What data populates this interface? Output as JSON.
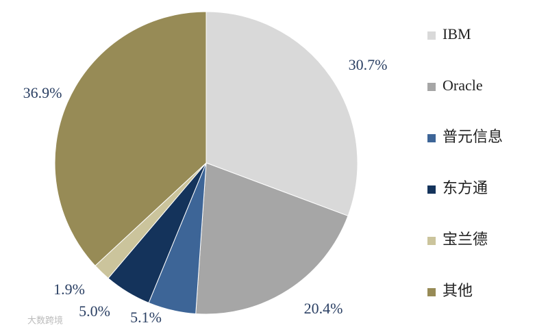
{
  "chart_data": {
    "type": "pie",
    "categories": [
      "IBM",
      "Oracle",
      "普元信息",
      "东方通",
      "宝兰德",
      "其他"
    ],
    "values": [
      30.7,
      20.4,
      5.1,
      5.0,
      1.9,
      36.9
    ],
    "value_labels": [
      "30.7%",
      "20.4%",
      "5.1%",
      "5.0%",
      "1.9%",
      "36.9%"
    ],
    "colors": [
      "#d9d9d9",
      "#a6a6a6",
      "#3d6597",
      "#14335b",
      "#cbc49c",
      "#978b56"
    ],
    "legend": "right",
    "watermark": "大数跨境"
  }
}
